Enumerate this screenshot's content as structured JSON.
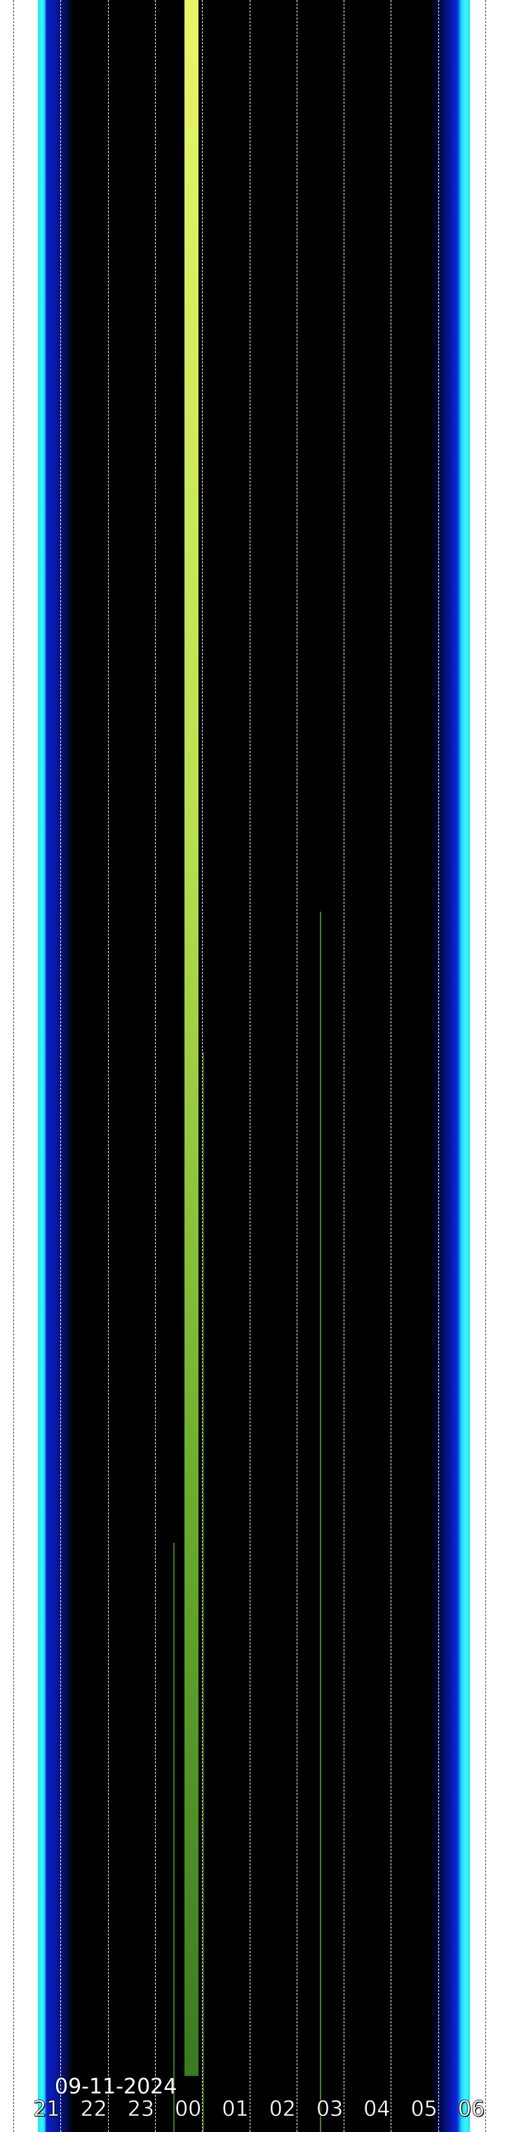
{
  "chart_data": {
    "type": "heatmap",
    "title": "",
    "date_label": "09-11-2024",
    "x_tick_labels": [
      "21",
      "22",
      "23",
      "00",
      "01",
      "02",
      "03",
      "04",
      "05",
      "06"
    ],
    "xlabel": "",
    "ylabel": "",
    "grid": true,
    "colors": {
      "edge_twilight": "#3ff4ff",
      "deep_twilight": "#0818a0",
      "night": "#000000",
      "aurora_band": "#d8f060",
      "green_line": "#5fa528"
    }
  }
}
